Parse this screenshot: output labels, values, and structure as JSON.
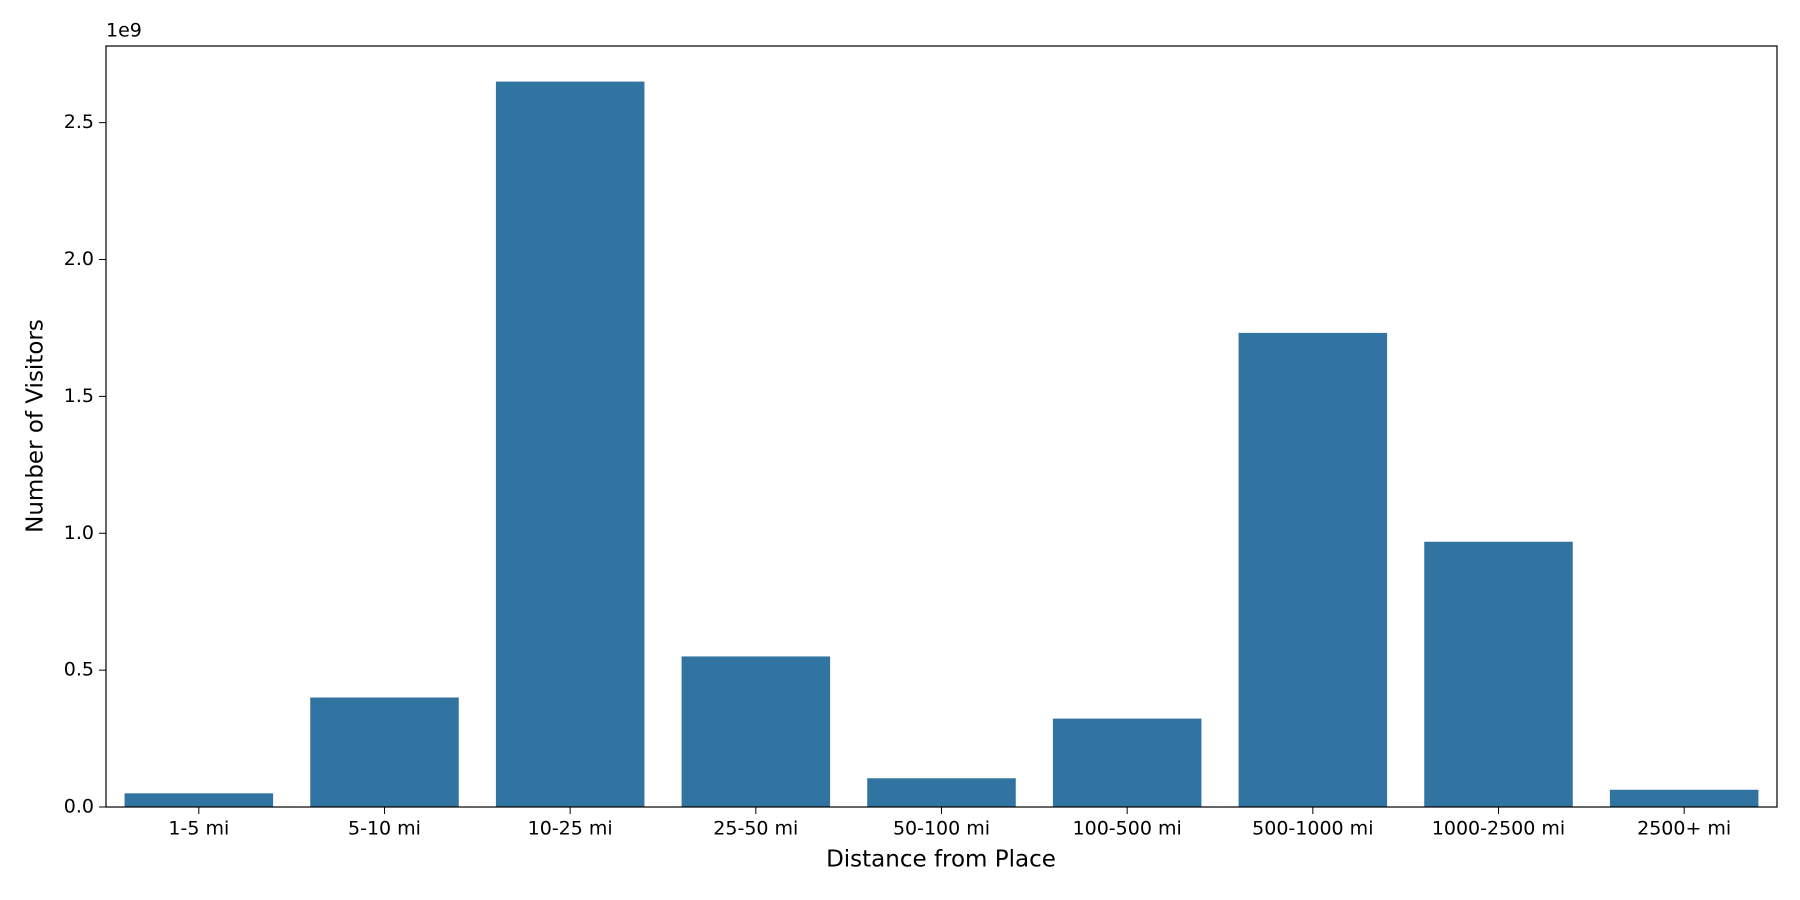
{
  "chart_data": {
    "type": "bar",
    "x_label": "Distance from Place",
    "y_label": "Number of Visitors",
    "y_offset_label": "1e9",
    "categories": [
      "1-5 mi",
      "5-10 mi",
      "10-25 mi",
      "25-50 mi",
      "50-100 mi",
      "100-500 mi",
      "500-1000 mi",
      "1000-2500 mi",
      "2500+ mi"
    ],
    "values": [
      50000000,
      400000000,
      2650000000,
      550000000,
      105000000,
      323000000,
      1732000000,
      969000000,
      63000000
    ],
    "color": "#3274a1",
    "ylim": [
      0,
      2780000000
    ],
    "yticks": [
      {
        "value": 0,
        "label": "0.0"
      },
      {
        "value": 500000000,
        "label": "0.5"
      },
      {
        "value": 1000000000,
        "label": "1.0"
      },
      {
        "value": 1500000000,
        "label": "1.5"
      },
      {
        "value": 2000000000,
        "label": "2.0"
      },
      {
        "value": 2500000000,
        "label": "2.5"
      }
    ],
    "grid": false
  }
}
